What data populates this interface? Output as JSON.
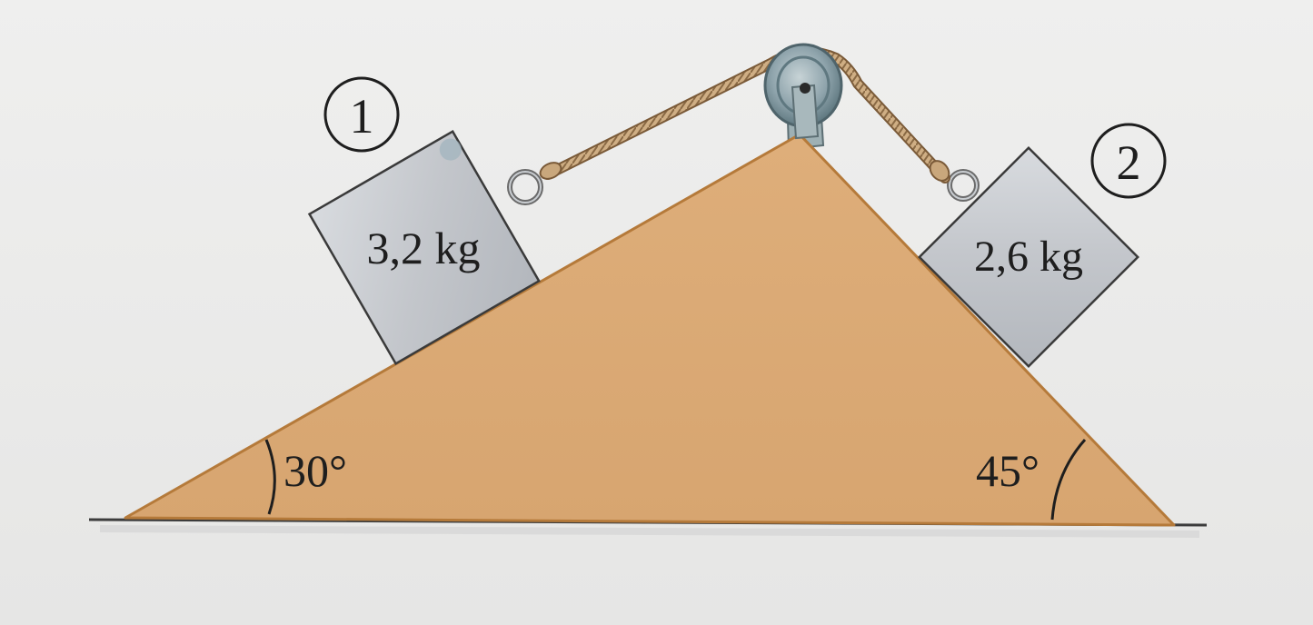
{
  "diagram": {
    "blocks": [
      {
        "tag": "1",
        "mass_label": "3,2 kg"
      },
      {
        "tag": "2",
        "mass_label": "2,6 kg"
      }
    ],
    "angles": {
      "left": "30°",
      "right": "45°"
    },
    "colors": {
      "background": "#ececeb",
      "wedge": "#dcac78",
      "wedge_edge": "#b57a3a",
      "block_fill": "#c8cbd0",
      "block_edge": "#3a3a3a",
      "rope": "#c9a77c",
      "pulley": "#8fa4ac",
      "ground": "#3c3c3c"
    },
    "icons": {
      "pulley": "pulley-icon",
      "ring": "ring-icon"
    }
  }
}
